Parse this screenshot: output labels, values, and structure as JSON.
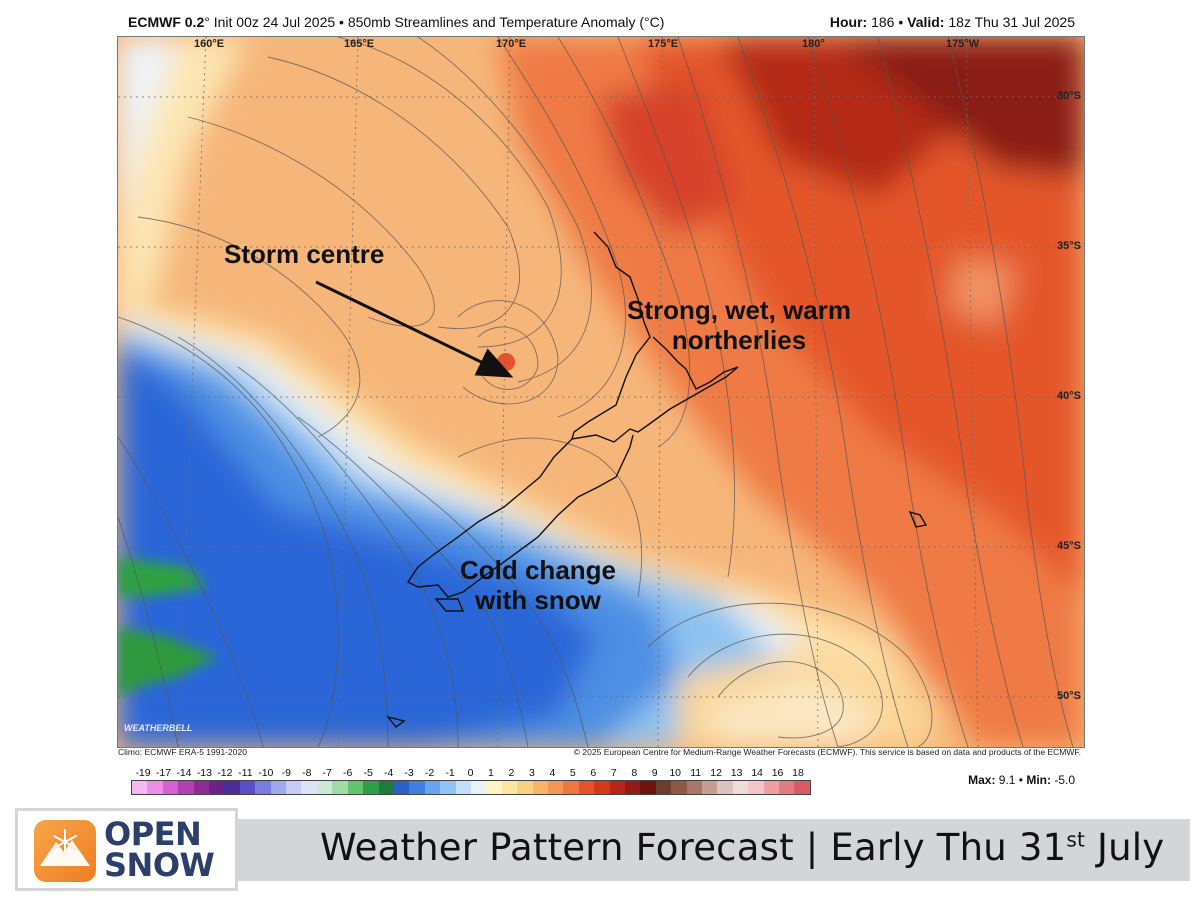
{
  "header": {
    "model": "ECMWF 0.2",
    "left_rest": "° Init 00z 24 Jul 2025 • 850mb Streamlines and Temperature Anomaly (°C)",
    "hour_label": "Hour:",
    "hour_value": " 186 • ",
    "valid_label": "Valid:",
    "valid_value": " 18z Thu 31 Jul 2025"
  },
  "map": {
    "longitudes": [
      "160°E",
      "165°E",
      "170°E",
      "175°E",
      "180°",
      "175°W"
    ],
    "latitudes": [
      "30°S",
      "35°S",
      "40°S",
      "45°S",
      "50°S"
    ],
    "annotations": {
      "storm": "Storm centre",
      "north_1": "Strong, wet, warm",
      "north_2": "northerlies",
      "cold_1": "Cold change",
      "cold_2": "with snow"
    },
    "watermark": "WEATHERBELL"
  },
  "credits": {
    "climo": "Climo: ECMWF ERA-5 1991-2020",
    "copyright": "© 2025 European Centre for Medium-Range Weather Forecasts (ECMWF). This service is based on data and products of the ECMWF."
  },
  "colorbar": {
    "labels": [
      "-19",
      "-17",
      "-14",
      "-13",
      "-12",
      "-11",
      "-10",
      "-9",
      "-8",
      "-7",
      "-6",
      "-5",
      "-4",
      "-3",
      "-2",
      "-1",
      "0",
      "1",
      "2",
      "3",
      "4",
      "5",
      "6",
      "7",
      "8",
      "9",
      "10",
      "11",
      "12",
      "13",
      "14",
      "16",
      "18"
    ],
    "colors": [
      "#f5b8f0",
      "#ea8fe4",
      "#d660d2",
      "#b43fb4",
      "#8e2a94",
      "#6a2188",
      "#4b2d9e",
      "#5a4fc8",
      "#7a7de0",
      "#9ea8ee",
      "#c4ccf5",
      "#dde2f7",
      "#cde9d4",
      "#9fdcaa",
      "#62c36e",
      "#2ea043",
      "#1f7a3c",
      "#2e5fc9",
      "#3f7fe0",
      "#66a4ee",
      "#92c5f5",
      "#c3e0f9",
      "#e9f2fb",
      "#fff4c2",
      "#fde5a3",
      "#fbcf84",
      "#f9b46a",
      "#f59654",
      "#f07740",
      "#e5532c",
      "#d3381c",
      "#b9251a",
      "#951a17",
      "#6e1410",
      "#6b3d2e",
      "#8b5a45",
      "#a7776a",
      "#c49d95",
      "#dcc3bd",
      "#efdcd6",
      "#f5c6c9",
      "#ef9ea3",
      "#e37b84",
      "#d75c67"
    ]
  },
  "stats": {
    "max_label": "Max:",
    "max_value": " 9.1 • ",
    "min_label": "Min:",
    "min_value": " -5.0"
  },
  "footer": {
    "logo_line1": "OPEN",
    "logo_line2": "SNOW",
    "title_main": "Weather Pattern Forecast | Early Thu 31",
    "title_sup": "st",
    "title_end": " July"
  }
}
